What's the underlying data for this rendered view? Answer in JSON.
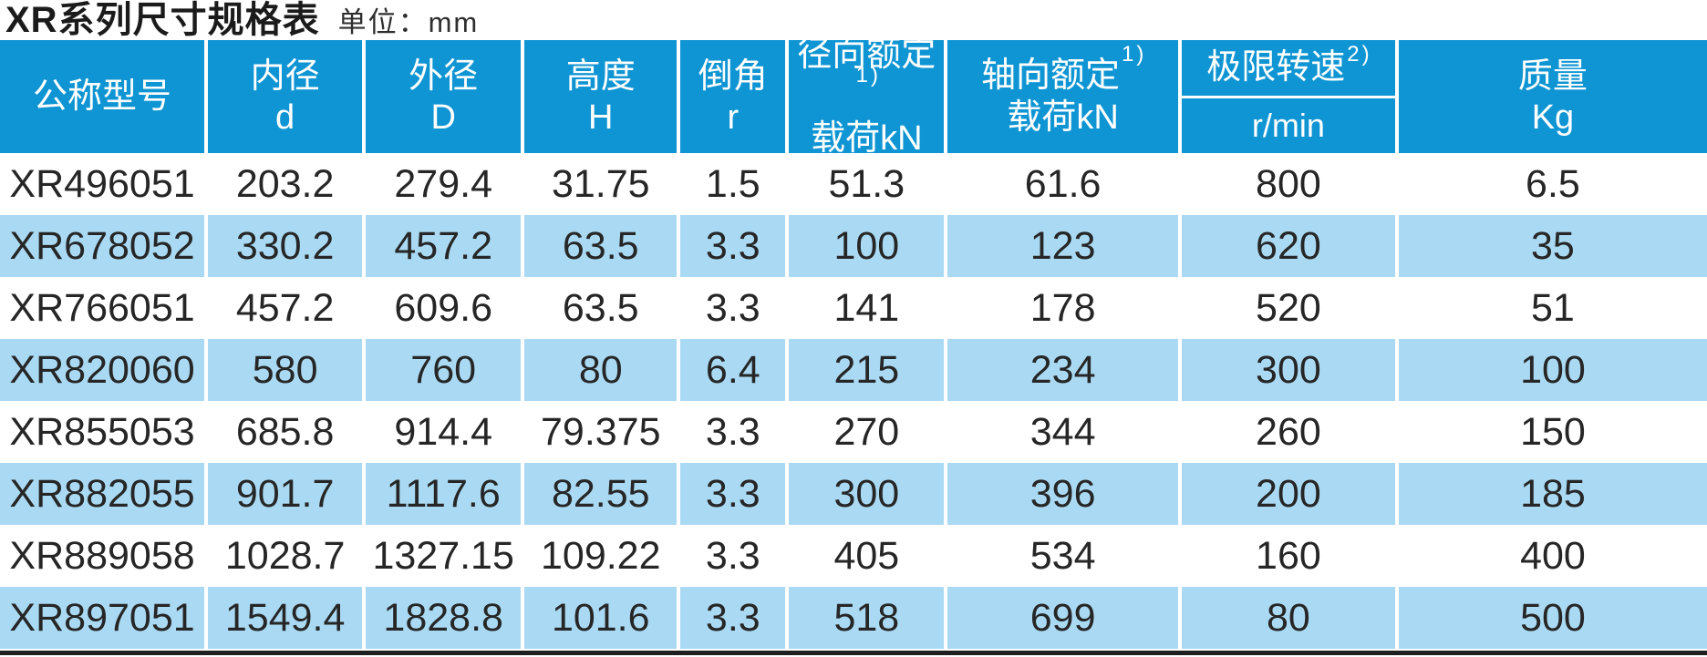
{
  "title": "XR系列尺寸规格表",
  "unit_label": "单位：mm",
  "colors": {
    "header_bg": "#0f95d3",
    "row_alt_bg": "#aadaf3",
    "header_text": "#ffffff",
    "body_text": "#262626",
    "title_text": "#1b1b1b",
    "bottom_rule": "#1f1f1f"
  },
  "table": {
    "headers": [
      {
        "line1": "公称型号",
        "line2": "",
        "sup": ""
      },
      {
        "line1": "内径",
        "line2": "d",
        "sup": ""
      },
      {
        "line1": "外径",
        "line2": "D",
        "sup": ""
      },
      {
        "line1": "高度",
        "line2": "H",
        "sup": ""
      },
      {
        "line1": "倒角",
        "line2": "r",
        "sup": ""
      },
      {
        "line1": "径向额定",
        "line2": "载荷kN",
        "sup": "1)"
      },
      {
        "line1": "轴向额定",
        "line2": "载荷kN",
        "sup": "1)"
      },
      {
        "line1": "极限转速",
        "line2": "r/min",
        "sup": "2)"
      },
      {
        "line1": "质量",
        "line2": "Kg",
        "sup": ""
      }
    ],
    "rows": [
      [
        "XR496051",
        "203.2",
        "279.4",
        "31.75",
        "1.5",
        "51.3",
        "61.6",
        "800",
        "6.5"
      ],
      [
        "XR678052",
        "330.2",
        "457.2",
        "63.5",
        "3.3",
        "100",
        "123",
        "620",
        "35"
      ],
      [
        "XR766051",
        "457.2",
        "609.6",
        "63.5",
        "3.3",
        "141",
        "178",
        "520",
        "51"
      ],
      [
        "XR820060",
        "580",
        "760",
        "80",
        "6.4",
        "215",
        "234",
        "300",
        "100"
      ],
      [
        "XR855053",
        "685.8",
        "914.4",
        "79.375",
        "3.3",
        "270",
        "344",
        "260",
        "150"
      ],
      [
        "XR882055",
        "901.7",
        "1117.6",
        "82.55",
        "3.3",
        "300",
        "396",
        "200",
        "185"
      ],
      [
        "XR889058",
        "1028.7",
        "1327.15",
        "109.22",
        "3.3",
        "405",
        "534",
        "160",
        "400"
      ],
      [
        "XR897051",
        "1549.4",
        "1828.8",
        "101.6",
        "3.3",
        "518",
        "699",
        "80",
        "500"
      ]
    ]
  }
}
